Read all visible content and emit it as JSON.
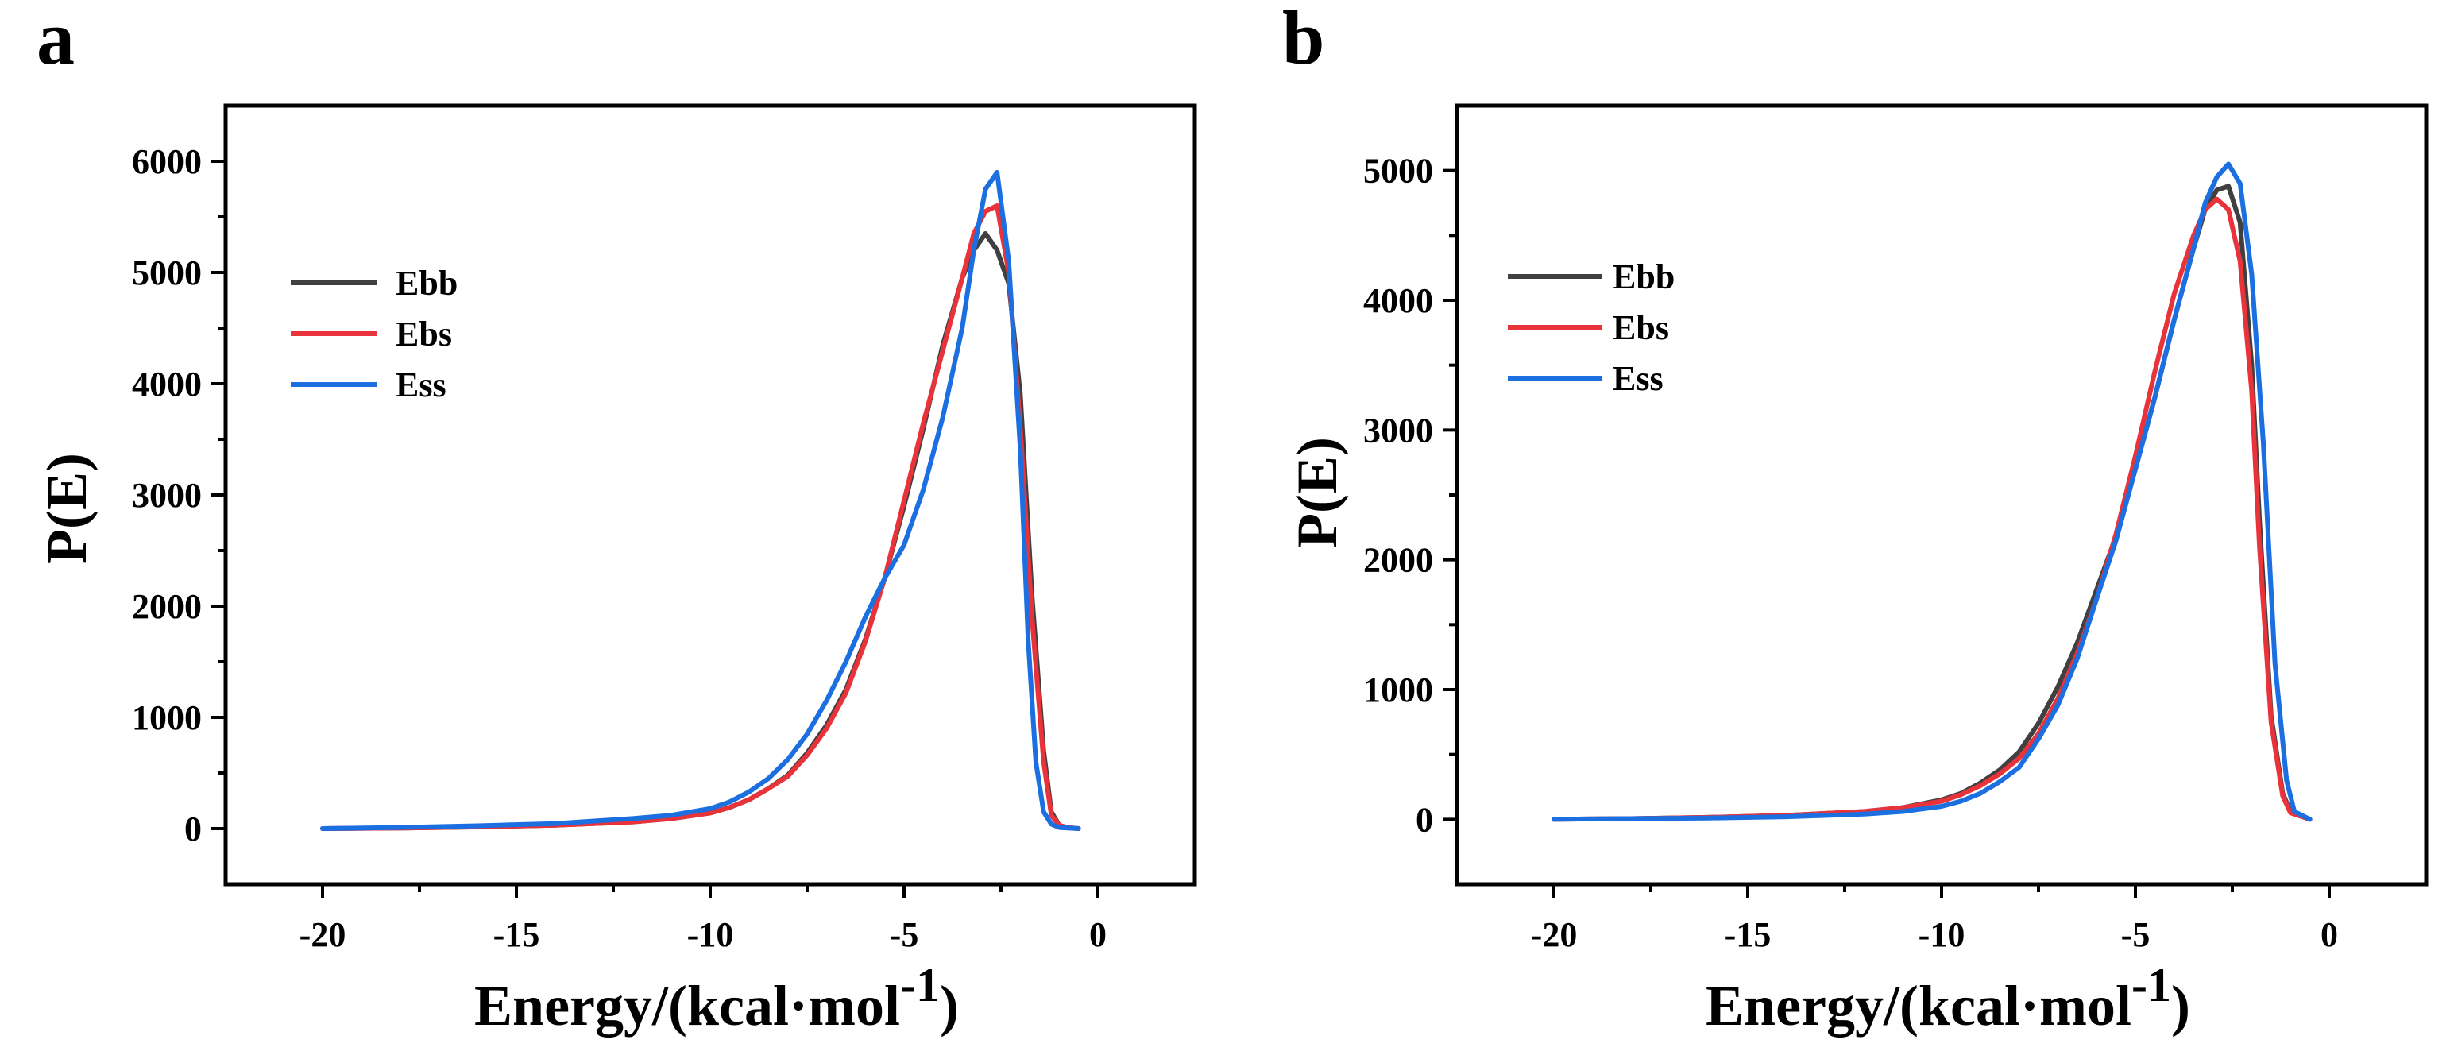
{
  "chart_data": [
    {
      "panel_label": "a",
      "type": "line",
      "xlabel_main": "Energy/(kcal·mol",
      "xlabel_sup": "-1",
      "xlabel_close": ")",
      "ylabel": "P(E)",
      "xlim": [
        -22.5,
        2.5
      ],
      "ylim": [
        -500,
        6500
      ],
      "xticks": [
        -20,
        -15,
        -10,
        -5,
        0
      ],
      "xtick_labels": [
        "-20",
        "-15",
        "-10",
        "-5",
        "0"
      ],
      "yticks": [
        0,
        1000,
        2000,
        3000,
        4000,
        5000,
        6000
      ],
      "ytick_labels": [
        "0",
        "1000",
        "2000",
        "3000",
        "4000",
        "5000",
        "6000"
      ],
      "legend_position": "upper-left",
      "series": [
        {
          "name": "Ebb",
          "color": "#404040",
          "x": [
            -20,
            -18,
            -16,
            -14,
            -12,
            -11,
            -10,
            -9.5,
            -9,
            -8.5,
            -8,
            -7.5,
            -7,
            -6.5,
            -6,
            -5.5,
            -5,
            -4.5,
            -4,
            -3.5,
            -3.2,
            -2.9,
            -2.6,
            -2.3,
            -2.0,
            -1.7,
            -1.4,
            -1.2,
            -1.0,
            -0.8,
            -0.5
          ],
          "y": [
            0,
            5,
            15,
            30,
            60,
            90,
            140,
            190,
            260,
            360,
            480,
            680,
            930,
            1250,
            1700,
            2250,
            2900,
            3600,
            4350,
            4950,
            5200,
            5350,
            5200,
            4900,
            3900,
            2100,
            700,
            150,
            30,
            10,
            0
          ]
        },
        {
          "name": "Ebs",
          "color": "#e8333a",
          "x": [
            -20,
            -18,
            -16,
            -14,
            -12,
            -11,
            -10,
            -9.5,
            -9,
            -8.5,
            -8,
            -7.5,
            -7,
            -6.5,
            -6,
            -5.5,
            -5,
            -4.5,
            -4,
            -3.5,
            -3.2,
            -2.9,
            -2.6,
            -2.3,
            -2.0,
            -1.7,
            -1.4,
            -1.2,
            -1.0,
            -0.8,
            -0.5
          ],
          "y": [
            0,
            5,
            15,
            30,
            60,
            90,
            140,
            190,
            260,
            360,
            470,
            660,
            900,
            1220,
            1680,
            2250,
            2950,
            3650,
            4300,
            4950,
            5350,
            5550,
            5600,
            5000,
            3600,
            1900,
            600,
            120,
            30,
            10,
            0
          ]
        },
        {
          "name": "Ess",
          "color": "#1c6fe0",
          "x": [
            -20,
            -18,
            -16,
            -14,
            -12,
            -11,
            -10,
            -9.5,
            -9,
            -8.5,
            -8,
            -7.5,
            -7,
            -6.5,
            -6,
            -5.5,
            -5,
            -4.5,
            -4,
            -3.5,
            -3.2,
            -2.9,
            -2.6,
            -2.3,
            -2.0,
            -1.8,
            -1.6,
            -1.4,
            -1.2,
            -1.0,
            -0.5
          ],
          "y": [
            0,
            10,
            25,
            45,
            90,
            120,
            180,
            240,
            330,
            450,
            620,
            850,
            1150,
            1500,
            1900,
            2250,
            2550,
            3050,
            3700,
            4500,
            5200,
            5750,
            5900,
            5100,
            3400,
            1700,
            600,
            150,
            40,
            10,
            0
          ]
        }
      ]
    },
    {
      "panel_label": "b",
      "type": "line",
      "xlabel_main": "Energy/(kcal·mol",
      "xlabel_sup": "-1",
      "xlabel_close": ")",
      "ylabel": "P(E)",
      "xlim": [
        -22.5,
        2.5
      ],
      "ylim": [
        -500,
        5500
      ],
      "xticks": [
        -20,
        -15,
        -10,
        -5,
        0
      ],
      "xtick_labels": [
        "-20",
        "-15",
        "-10",
        "-5",
        "0"
      ],
      "yticks": [
        0,
        1000,
        2000,
        3000,
        4000,
        5000
      ],
      "ytick_labels": [
        "0",
        "1000",
        "2000",
        "3000",
        "4000",
        "5000"
      ],
      "legend_position": "upper-left",
      "series": [
        {
          "name": "Ebb",
          "color": "#404040",
          "x": [
            -20,
            -18,
            -16,
            -14,
            -12,
            -11,
            -10,
            -9.5,
            -9,
            -8.5,
            -8,
            -7.5,
            -7,
            -6.5,
            -6,
            -5.5,
            -5,
            -4.5,
            -4,
            -3.5,
            -3.2,
            -2.9,
            -2.6,
            -2.3,
            -2.0,
            -1.8,
            -1.5,
            -1.2,
            -1.0,
            -0.5
          ],
          "y": [
            0,
            5,
            15,
            30,
            60,
            90,
            150,
            200,
            280,
            380,
            520,
            740,
            1020,
            1360,
            1770,
            2180,
            2700,
            3250,
            3850,
            4400,
            4700,
            4850,
            4880,
            4600,
            3500,
            2300,
            800,
            200,
            60,
            0
          ]
        },
        {
          "name": "Ebs",
          "color": "#e8333a",
          "x": [
            -20,
            -18,
            -16,
            -14,
            -12,
            -11,
            -10,
            -9.5,
            -9,
            -8.5,
            -8,
            -7.5,
            -7,
            -6.5,
            -6,
            -5.5,
            -5,
            -4.5,
            -4,
            -3.5,
            -3.2,
            -2.9,
            -2.6,
            -2.3,
            -2.0,
            -1.8,
            -1.5,
            -1.2,
            -1.0,
            -0.5
          ],
          "y": [
            0,
            5,
            15,
            30,
            60,
            90,
            140,
            190,
            260,
            350,
            470,
            660,
            930,
            1280,
            1700,
            2200,
            2800,
            3450,
            4050,
            4500,
            4700,
            4780,
            4700,
            4300,
            3300,
            2100,
            750,
            180,
            50,
            0
          ]
        },
        {
          "name": "Ess",
          "color": "#1c6fe0",
          "x": [
            -20,
            -18,
            -16,
            -14,
            -12,
            -11,
            -10,
            -9.5,
            -9,
            -8.5,
            -8,
            -7.5,
            -7,
            -6.5,
            -6,
            -5.5,
            -5,
            -4.5,
            -4,
            -3.5,
            -3.2,
            -2.9,
            -2.6,
            -2.3,
            -2.0,
            -1.7,
            -1.4,
            -1.1,
            -0.9,
            -0.5
          ],
          "y": [
            0,
            5,
            10,
            20,
            40,
            60,
            100,
            140,
            200,
            290,
            400,
            620,
            880,
            1240,
            1700,
            2150,
            2700,
            3250,
            3850,
            4400,
            4750,
            4950,
            5050,
            4900,
            4200,
            2900,
            1200,
            300,
            60,
            0
          ]
        }
      ]
    }
  ]
}
